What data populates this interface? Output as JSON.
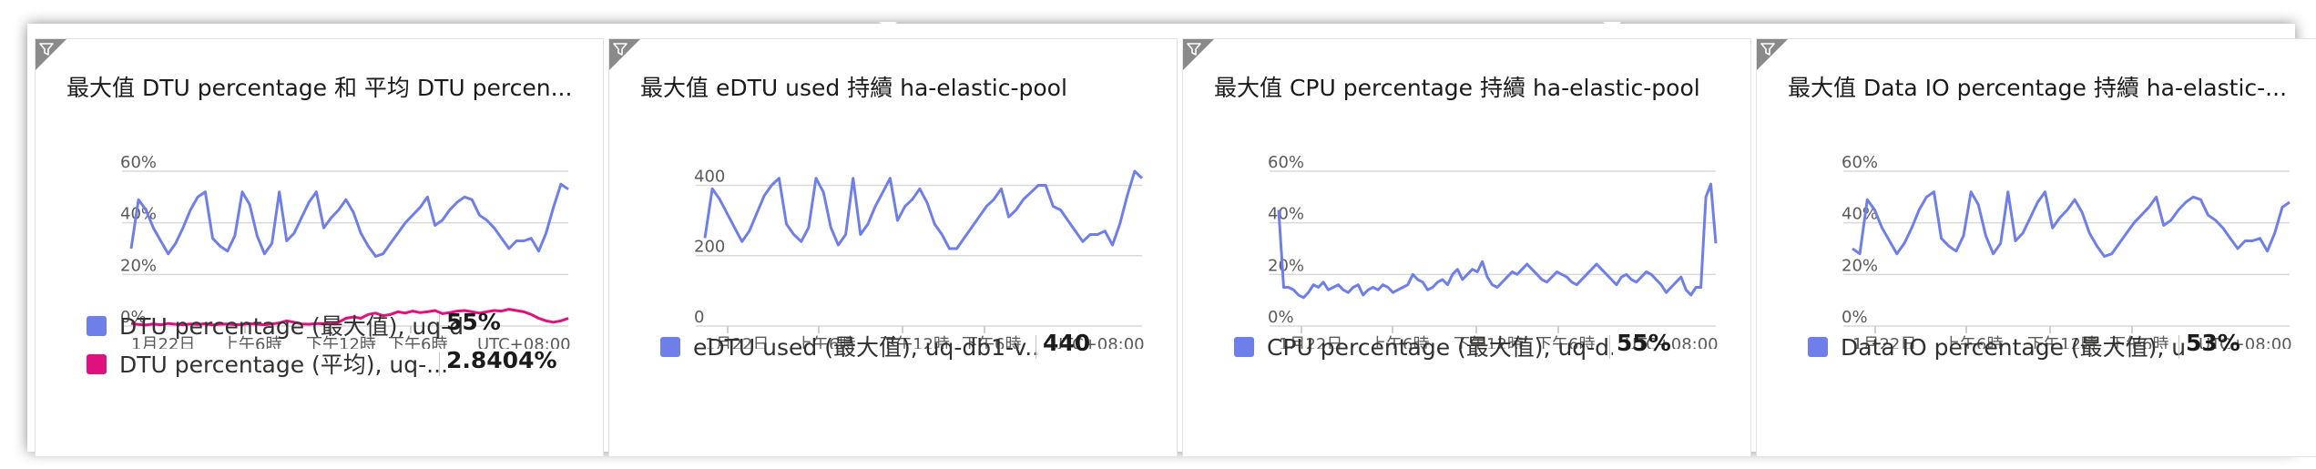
{
  "colors": {
    "series_blue": "#6f7fe9",
    "series_pink": "#e0117f",
    "grid": "#d9d9d9",
    "axis_text": "#5a5a5a"
  },
  "icons": {
    "tile_corner": "filter-icon"
  },
  "tiles": [
    {
      "title": "最大值 DTU percentage 和 平均 DTU percen...",
      "legend": [
        {
          "name": "DTU percentage (最大值), uq-d...",
          "value": "55%",
          "color": "#6f7fe9"
        },
        {
          "name": "DTU percentage (平均), uq-...",
          "value": "2.8404%",
          "color": "#e0117f"
        }
      ]
    },
    {
      "title": "最大值 eDTU used 持續 ha-elastic-pool",
      "legend": [
        {
          "name": "eDTU used (最大值), uq-db1-v...",
          "value": "440",
          "color": "#6f7fe9"
        }
      ]
    },
    {
      "title": "最大值 CPU percentage 持續 ha-elastic-pool",
      "legend": [
        {
          "name": "CPU percentage (最大值), uq-d...",
          "value": "55%",
          "color": "#6f7fe9"
        }
      ]
    },
    {
      "title": "最大值 Data IO percentage 持續 ha-elastic-...",
      "legend": [
        {
          "name": "Data IO percentage (最大值), u...",
          "value": "53%",
          "color": "#6f7fe9"
        }
      ]
    }
  ],
  "chart_data": [
    {
      "type": "line",
      "x_ticks": [
        "1月22日",
        "上午6時",
        "下午12時",
        "下午6時",
        "UTC+08:00"
      ],
      "y_ticks": [
        "0%",
        "20%",
        "40%",
        "60%"
      ],
      "ylim": [
        0,
        60
      ],
      "grid": true,
      "series": [
        {
          "name": "DTU percentage (最大值), uq-d...",
          "color": "#6f7fe9",
          "values": [
            30,
            49,
            45,
            38,
            33,
            28,
            32,
            38,
            45,
            50,
            52,
            34,
            31,
            29,
            35,
            52,
            47,
            35,
            28,
            32,
            52,
            33,
            36,
            42,
            48,
            52,
            38,
            42,
            45,
            49,
            44,
            36,
            31,
            27,
            28,
            32,
            36,
            40,
            43,
            46,
            50,
            39,
            41,
            45,
            48,
            50,
            49,
            43,
            41,
            38,
            34,
            30,
            33,
            33,
            34,
            29,
            36,
            46,
            55,
            53
          ]
        },
        {
          "name": "DTU percentage (平均), uq-...",
          "color": "#e0117f",
          "values": [
            1,
            0.6,
            0.4,
            0.8,
            0.5,
            1,
            0.7,
            0.5,
            0.8,
            0.6,
            0.9,
            0.4,
            0.7,
            0.8,
            0.5,
            0.6,
            0.9,
            0.7,
            0.5,
            0.8,
            1.2,
            2,
            1.5,
            0.8,
            0.7,
            0.9,
            1,
            0.8,
            1.5,
            3,
            3.5,
            3,
            4.5,
            5,
            4,
            4.5,
            5.5,
            5,
            5.8,
            5.2,
            5.5,
            6,
            4.8,
            5.2,
            5.8,
            6,
            5.5,
            5,
            5.5,
            6,
            5.8,
            6.5,
            6,
            5.5,
            4.5,
            3,
            2,
            1.5,
            2,
            3
          ]
        }
      ]
    },
    {
      "type": "line",
      "x_ticks": [
        "1月22日",
        "上午6時",
        "下午12時",
        "下午6時",
        "UTC+08:00"
      ],
      "y_ticks": [
        "0",
        "200",
        "400"
      ],
      "ylim": [
        0,
        440
      ],
      "grid": true,
      "series": [
        {
          "name": "eDTU used (最大值), uq-db1-v...",
          "color": "#6f7fe9",
          "values": [
            250,
            390,
            360,
            320,
            280,
            240,
            270,
            320,
            370,
            400,
            420,
            290,
            260,
            240,
            280,
            420,
            380,
            280,
            230,
            260,
            420,
            260,
            290,
            340,
            380,
            420,
            300,
            340,
            360,
            390,
            350,
            290,
            260,
            220,
            220,
            250,
            280,
            310,
            340,
            360,
            390,
            310,
            330,
            360,
            380,
            400,
            400,
            340,
            330,
            300,
            270,
            240,
            260,
            260,
            270,
            230,
            290,
            370,
            440,
            420
          ]
        }
      ]
    },
    {
      "type": "line",
      "x_ticks": [
        "1月22日",
        "上午6時",
        "下午12時",
        "下午6時",
        "UTC+08:00"
      ],
      "y_ticks": [
        "0%",
        "20%",
        "40%",
        "60%"
      ],
      "ylim": [
        0,
        60
      ],
      "grid": true,
      "series": [
        {
          "name": "CPU percentage (最大值), uq-d...",
          "color": "#6f7fe9",
          "values": [
            45,
            15,
            15,
            14,
            12,
            11,
            13,
            16,
            15,
            17,
            14,
            15,
            16,
            14,
            13,
            15,
            16,
            12,
            14,
            15,
            14,
            16,
            15,
            13,
            14,
            15,
            16,
            20,
            18,
            17,
            14,
            15,
            17,
            18,
            16,
            20,
            22,
            18,
            20,
            22,
            21,
            25,
            19,
            16,
            15,
            17,
            19,
            21,
            20,
            22,
            24,
            22,
            20,
            18,
            17,
            19,
            21,
            20,
            19,
            17,
            16,
            18,
            20,
            22,
            24,
            22,
            20,
            18,
            16,
            19,
            20,
            18,
            17,
            19,
            21,
            20,
            18,
            16,
            13,
            15,
            17,
            19,
            14,
            12,
            15,
            15,
            50,
            55,
            32
          ]
        }
      ]
    },
    {
      "type": "line",
      "x_ticks": [
        "1月22日",
        "上午6時",
        "下午12時",
        "下午6時",
        "UTC+08:00"
      ],
      "y_ticks": [
        "0%",
        "20%",
        "40%",
        "60%"
      ],
      "ylim": [
        0,
        60
      ],
      "grid": true,
      "series": [
        {
          "name": "Data IO percentage (最大值), u...",
          "color": "#6f7fe9",
          "values": [
            30,
            28,
            49,
            45,
            38,
            33,
            28,
            32,
            38,
            45,
            50,
            52,
            34,
            31,
            29,
            35,
            52,
            47,
            35,
            28,
            32,
            52,
            33,
            36,
            42,
            48,
            52,
            38,
            42,
            45,
            49,
            44,
            36,
            31,
            27,
            28,
            32,
            36,
            40,
            43,
            46,
            50,
            39,
            41,
            45,
            48,
            50,
            49,
            43,
            41,
            38,
            34,
            30,
            33,
            33,
            34,
            29,
            36,
            46,
            48
          ]
        }
      ]
    }
  ]
}
